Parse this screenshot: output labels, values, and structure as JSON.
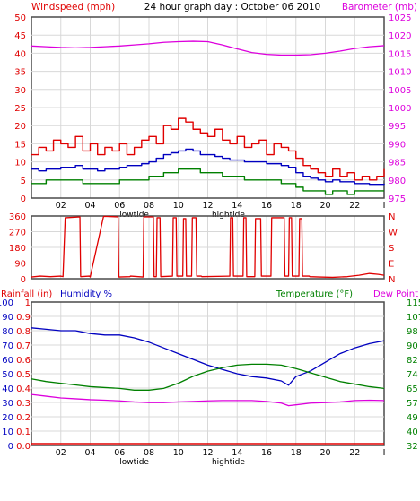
{
  "header": {
    "left": "Windspeed (mph)",
    "title": "24 hour graph day : October 06 2010",
    "right": "Barometer (mb)"
  },
  "colors": {
    "wind": "#e00000",
    "baro": "#dd00dd",
    "blue": "#0000c0",
    "green": "#008000",
    "border": "#4a4a4a",
    "grid": "#d8d8d8"
  },
  "xaxis": {
    "labels": [
      "02",
      "04",
      "06",
      "08",
      "10",
      "12",
      "14",
      "16",
      "18",
      "20",
      "22"
    ],
    "end": "I",
    "tide": [
      {
        "text": "lowtide",
        "at": 7.0
      },
      {
        "text": "hightide",
        "at": 13.4
      }
    ]
  },
  "chart_data": [
    {
      "type": "line",
      "panel": "wind-barometer",
      "xlim": [
        0,
        24
      ],
      "left_axis": {
        "label": "Windspeed (mph)",
        "ticks": [
          "0",
          "5",
          "10",
          "15",
          "20",
          "25",
          "30",
          "35",
          "40",
          "45",
          "50"
        ],
        "ylim": [
          0,
          50
        ]
      },
      "right_axis": {
        "label": "Barometer (mb)",
        "ticks": [
          "975",
          "980",
          "985",
          "990",
          "995",
          "1000",
          "1005",
          "1010",
          "1015",
          "1020",
          "1025"
        ],
        "ylim": [
          975,
          1025
        ]
      },
      "series": [
        {
          "role": "wind-gust",
          "color": "#e00000",
          "axis": "left",
          "x": [
            0,
            0.5,
            1,
            1.5,
            2,
            2.5,
            3,
            3.5,
            4,
            4.5,
            5,
            5.5,
            6,
            6.5,
            7,
            7.5,
            8,
            8.5,
            9,
            9.5,
            10,
            10.5,
            11,
            11.5,
            12,
            12.5,
            13,
            13.5,
            14,
            14.5,
            15,
            15.5,
            16,
            16.5,
            17,
            17.5,
            18,
            18.5,
            19,
            19.5,
            20,
            20.5,
            21,
            21.5,
            22,
            22.5,
            23,
            23.5,
            24
          ],
          "values": [
            12,
            14,
            13,
            16,
            15,
            14,
            17,
            13,
            15,
            12,
            14,
            13,
            15,
            12,
            14,
            16,
            17,
            15,
            20,
            19,
            22,
            21,
            19,
            18,
            17,
            19,
            16,
            15,
            17,
            14,
            15,
            16,
            12,
            15,
            14,
            13,
            11,
            9,
            8,
            7,
            6,
            8,
            6,
            7,
            5,
            6,
            5,
            6,
            8
          ]
        },
        {
          "role": "wind-avg",
          "color": "#0000c0",
          "axis": "left",
          "x": [
            0,
            0.5,
            1,
            1.5,
            2,
            2.5,
            3,
            3.5,
            4,
            4.5,
            5,
            5.5,
            6,
            6.5,
            7,
            7.5,
            8,
            8.5,
            9,
            9.5,
            10,
            10.5,
            11,
            11.5,
            12,
            12.5,
            13,
            13.5,
            14,
            14.5,
            15,
            15.5,
            16,
            16.5,
            17,
            17.5,
            18,
            18.5,
            19,
            19.5,
            20,
            20.5,
            21,
            21.5,
            22,
            22.5,
            23,
            23.5,
            24
          ],
          "values": [
            8,
            7.5,
            8,
            8,
            8.5,
            8.5,
            9,
            8,
            8,
            7.5,
            8,
            8,
            8.5,
            9,
            9,
            9.5,
            10,
            11,
            12,
            12.5,
            13,
            13.5,
            13,
            12,
            12,
            11.5,
            11,
            10.5,
            10.5,
            10,
            10,
            10,
            9.5,
            9.5,
            9,
            8.5,
            7,
            6,
            5.5,
            5,
            4.5,
            5,
            4.5,
            4.5,
            4,
            4,
            3.8,
            3.8,
            4
          ]
        },
        {
          "role": "wind-low",
          "color": "#008000",
          "axis": "left",
          "x": [
            0,
            0.5,
            1,
            1.5,
            2,
            2.5,
            3,
            3.5,
            4,
            4.5,
            5,
            5.5,
            6,
            6.5,
            7,
            7.5,
            8,
            8.5,
            9,
            9.5,
            10,
            10.5,
            11,
            11.5,
            12,
            12.5,
            13,
            13.5,
            14,
            14.5,
            15,
            15.5,
            16,
            16.5,
            17,
            17.5,
            18,
            18.5,
            19,
            19.5,
            20,
            20.5,
            21,
            21.5,
            22,
            22.5,
            23,
            23.5,
            24
          ],
          "values": [
            4,
            4,
            5,
            5,
            5,
            5,
            5,
            4,
            4,
            4,
            4,
            4,
            5,
            5,
            5,
            5,
            6,
            6,
            7,
            7,
            8,
            8,
            8,
            7,
            7,
            7,
            6,
            6,
            6,
            5,
            5,
            5,
            5,
            5,
            4,
            4,
            3,
            2,
            2,
            2,
            1,
            2,
            2,
            1,
            2,
            2,
            2,
            2,
            2
          ]
        },
        {
          "role": "barometer",
          "color": "#dd00dd",
          "axis": "right",
          "x": [
            0,
            1,
            2,
            3,
            4,
            5,
            6,
            7,
            8,
            9,
            10,
            11,
            12,
            13,
            14,
            15,
            16,
            17,
            18,
            19,
            20,
            21,
            22,
            23,
            24
          ],
          "values": [
            1017.0,
            1016.8,
            1016.6,
            1016.5,
            1016.6,
            1016.8,
            1017.0,
            1017.3,
            1017.6,
            1018.0,
            1018.2,
            1018.3,
            1018.2,
            1017.3,
            1016.2,
            1015.2,
            1014.7,
            1014.5,
            1014.5,
            1014.6,
            1015.0,
            1015.6,
            1016.3,
            1016.8,
            1017.1
          ]
        }
      ]
    },
    {
      "type": "line",
      "panel": "wind-direction",
      "xlim": [
        0,
        24
      ],
      "left_axis": {
        "ticks": [
          "0",
          "90",
          "180",
          "270",
          "360"
        ],
        "ylim": [
          0,
          360
        ]
      },
      "right_axis": {
        "ticks": [
          "N",
          "E",
          "S",
          "W",
          "N"
        ]
      },
      "series": [
        {
          "role": "direction",
          "color": "#e00000",
          "axis": "left",
          "x": [
            0,
            0.6,
            1.3,
            2,
            2.15,
            2.3,
            2.35,
            3.3,
            3.35,
            3.95,
            4.0,
            4.9,
            4.95,
            5.9,
            5.95,
            6.7,
            6.75,
            7.6,
            7.65,
            8.3,
            8.35,
            8.5,
            8.55,
            8.75,
            8.8,
            9.6,
            9.65,
            9.85,
            9.9,
            10.3,
            10.35,
            10.5,
            10.55,
            10.9,
            10.95,
            11.2,
            11.25,
            11.55,
            11.6,
            13.5,
            13.55,
            13.7,
            13.75,
            14.4,
            14.45,
            14.6,
            14.65,
            15.2,
            15.25,
            15.6,
            15.65,
            16.3,
            16.35,
            17.2,
            17.25,
            17.5,
            17.55,
            17.7,
            17.75,
            18.2,
            18.25,
            18.4,
            18.45,
            18.9,
            18.95,
            19.6,
            20.5,
            21.5,
            22.3,
            23.0,
            23.6,
            24
          ],
          "values": [
            10,
            15,
            12,
            15,
            12,
            350,
            350,
            355,
            12,
            15,
            10,
            355,
            358,
            355,
            10,
            12,
            15,
            10,
            355,
            355,
            12,
            12,
            350,
            350,
            12,
            15,
            350,
            350,
            15,
            15,
            345,
            345,
            15,
            15,
            350,
            350,
            15,
            15,
            12,
            15,
            350,
            350,
            15,
            15,
            350,
            350,
            12,
            12,
            345,
            345,
            15,
            15,
            350,
            350,
            15,
            15,
            350,
            350,
            15,
            15,
            345,
            345,
            15,
            15,
            12,
            10,
            8,
            12,
            20,
            30,
            25,
            20
          ]
        }
      ]
    },
    {
      "type": "line",
      "panel": "rain-humidity-temperature",
      "xlim": [
        0,
        24
      ],
      "left_axis_rain": {
        "label": "Rainfall (in)",
        "ticks": [
          "0.0",
          "0.1",
          "0.2",
          "0.3",
          "0.4",
          "0.5",
          "0.6",
          "0.7",
          "0.8",
          "0.9",
          "1"
        ],
        "ylim": [
          0,
          1
        ]
      },
      "left_axis_humidity": {
        "label": "Humidity %",
        "ticks": [
          "0",
          "10",
          "20",
          "30",
          "40",
          "50",
          "60",
          "70",
          "80",
          "90",
          "100"
        ],
        "ylim": [
          0,
          100
        ]
      },
      "right_axis": {
        "label": "Temperature (°F)",
        "label2": "Dew Point",
        "ticks": [
          "32",
          "40",
          "49",
          "57",
          "65",
          "74",
          "82",
          "90",
          "98",
          "107",
          "115"
        ],
        "ylim": [
          32,
          115
        ]
      },
      "series": [
        {
          "role": "humidity",
          "color": "#0000c0",
          "axis": "humidity",
          "x": [
            0,
            1,
            2,
            3,
            4,
            5,
            6,
            7,
            8,
            9,
            10,
            11,
            12,
            13,
            14,
            15,
            16,
            17,
            17.5,
            18,
            19,
            20,
            21,
            22,
            23,
            24
          ],
          "values": [
            82,
            81,
            80,
            80,
            78,
            77,
            77,
            75,
            72,
            68,
            64,
            60,
            56,
            53,
            50,
            48,
            47,
            45,
            42,
            48,
            52,
            58,
            64,
            68,
            71,
            73
          ]
        },
        {
          "role": "temperature",
          "color": "#008000",
          "axis": "right",
          "x": [
            0,
            1,
            2,
            3,
            4,
            5,
            6,
            7,
            8,
            9,
            10,
            11,
            12,
            13,
            14,
            15,
            16,
            17,
            18,
            19,
            20,
            21,
            22,
            23,
            24
          ],
          "values": [
            70.5,
            69,
            68,
            67,
            66,
            65.5,
            65,
            64,
            64,
            65,
            68,
            72,
            75,
            77,
            78.5,
            79,
            79,
            78.5,
            76.5,
            74,
            71.5,
            69,
            67.5,
            66,
            65
          ]
        },
        {
          "role": "dew-point",
          "color": "#dd00dd",
          "axis": "right",
          "x": [
            0,
            1,
            2,
            3,
            4,
            5,
            6,
            7,
            8,
            9,
            10,
            11,
            12,
            13,
            14,
            15,
            16,
            17,
            17.5,
            18,
            19,
            20,
            21,
            22,
            23,
            24
          ],
          "values": [
            61.5,
            60.5,
            59.5,
            59,
            58.5,
            58.2,
            57.8,
            57.2,
            56.8,
            56.8,
            57.2,
            57.5,
            57.8,
            58,
            58,
            58,
            57.5,
            56.5,
            55,
            55.5,
            56.5,
            56.8,
            57.2,
            58,
            58.2,
            58
          ]
        },
        {
          "role": "rainfall",
          "color": "#e00000",
          "axis": "rain",
          "x": [
            0,
            24
          ],
          "values": [
            0,
            0
          ]
        }
      ]
    }
  ]
}
